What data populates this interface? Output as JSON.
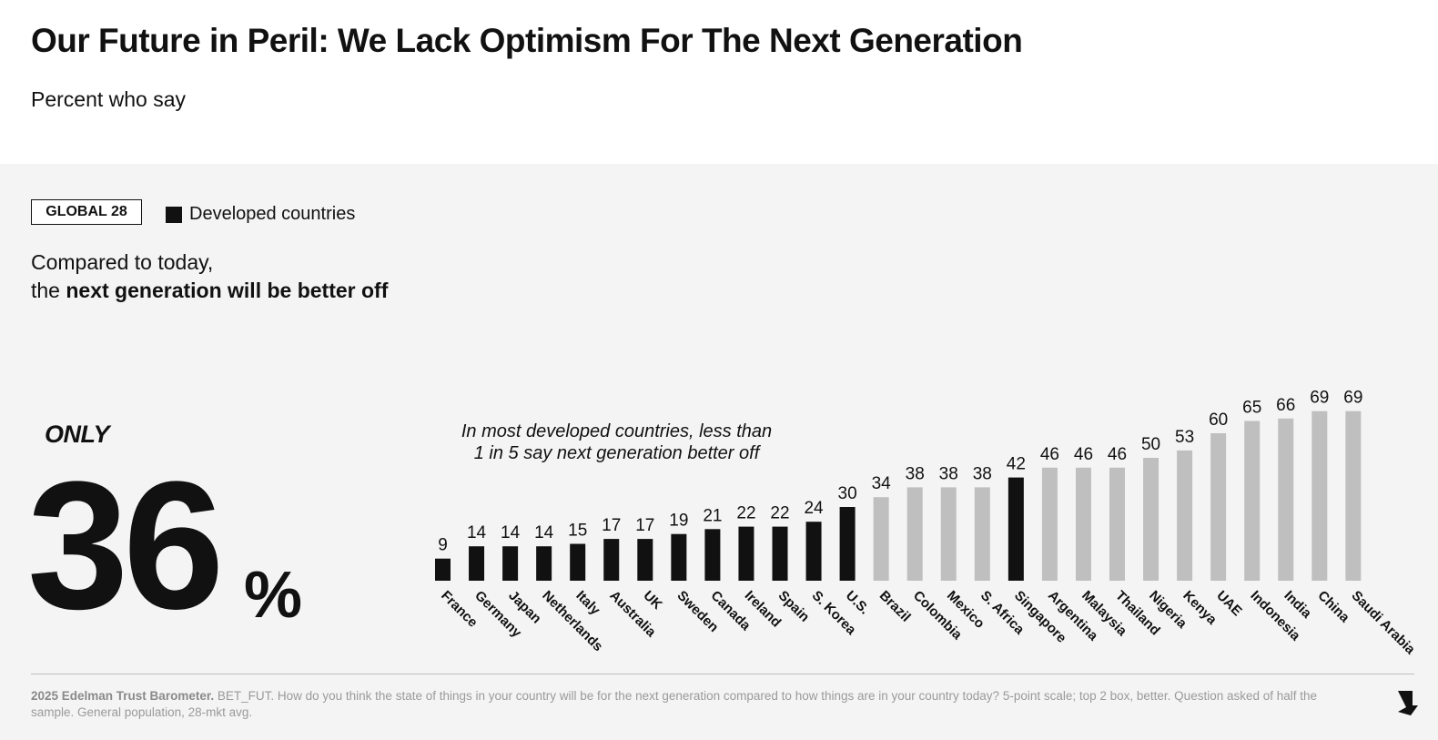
{
  "title": "Our Future in Peril: We Lack Optimism For The Next Generation",
  "subtitle": "Percent who say",
  "badge": "GLOBAL 28",
  "legend_label": "Developed countries",
  "question_line1": "Compared to today,",
  "question_prefix": "the",
  "question_bold": "next generation will be better off",
  "only_label": "ONLY",
  "global_value": "36",
  "percent_sign": "%",
  "annotation_line1": "In most developed countries, less than",
  "annotation_line2": "1 in 5 say next generation better off",
  "footnote_bold": "2025 Edelman Trust Barometer.",
  "footnote_text": "BET_FUT. How do you think the state of things in your country will be for the next generation compared to how things are in your country today? 5-point scale; top 2 box, better. Question asked of half the sample. General population, 28-mkt avg.",
  "next_icon": "next-arrow-icon",
  "colors": {
    "developed": "#111111",
    "developing": "#bfbfbf",
    "panel": "#f4f4f4"
  },
  "chart_data": {
    "type": "bar",
    "categories": [
      "France",
      "Germany",
      "Japan",
      "Netherlands",
      "Italy",
      "Australia",
      "UK",
      "Sweden",
      "Canada",
      "Ireland",
      "Spain",
      "S. Korea",
      "U.S.",
      "Brazil",
      "Colombia",
      "Mexico",
      "S. Africa",
      "Singapore",
      "Argentina",
      "Malaysia",
      "Thailand",
      "Nigeria",
      "Kenya",
      "UAE",
      "Indonesia",
      "India",
      "China",
      "Saudi Arabia"
    ],
    "values": [
      9,
      14,
      14,
      14,
      15,
      17,
      17,
      19,
      21,
      22,
      22,
      24,
      30,
      34,
      38,
      38,
      38,
      42,
      46,
      46,
      46,
      50,
      53,
      60,
      65,
      66,
      69,
      69
    ],
    "developed": [
      true,
      true,
      true,
      true,
      true,
      true,
      true,
      true,
      true,
      true,
      true,
      true,
      true,
      false,
      false,
      false,
      false,
      true,
      false,
      false,
      false,
      false,
      false,
      false,
      false,
      false,
      false,
      false
    ],
    "ylim": [
      0,
      69
    ]
  }
}
